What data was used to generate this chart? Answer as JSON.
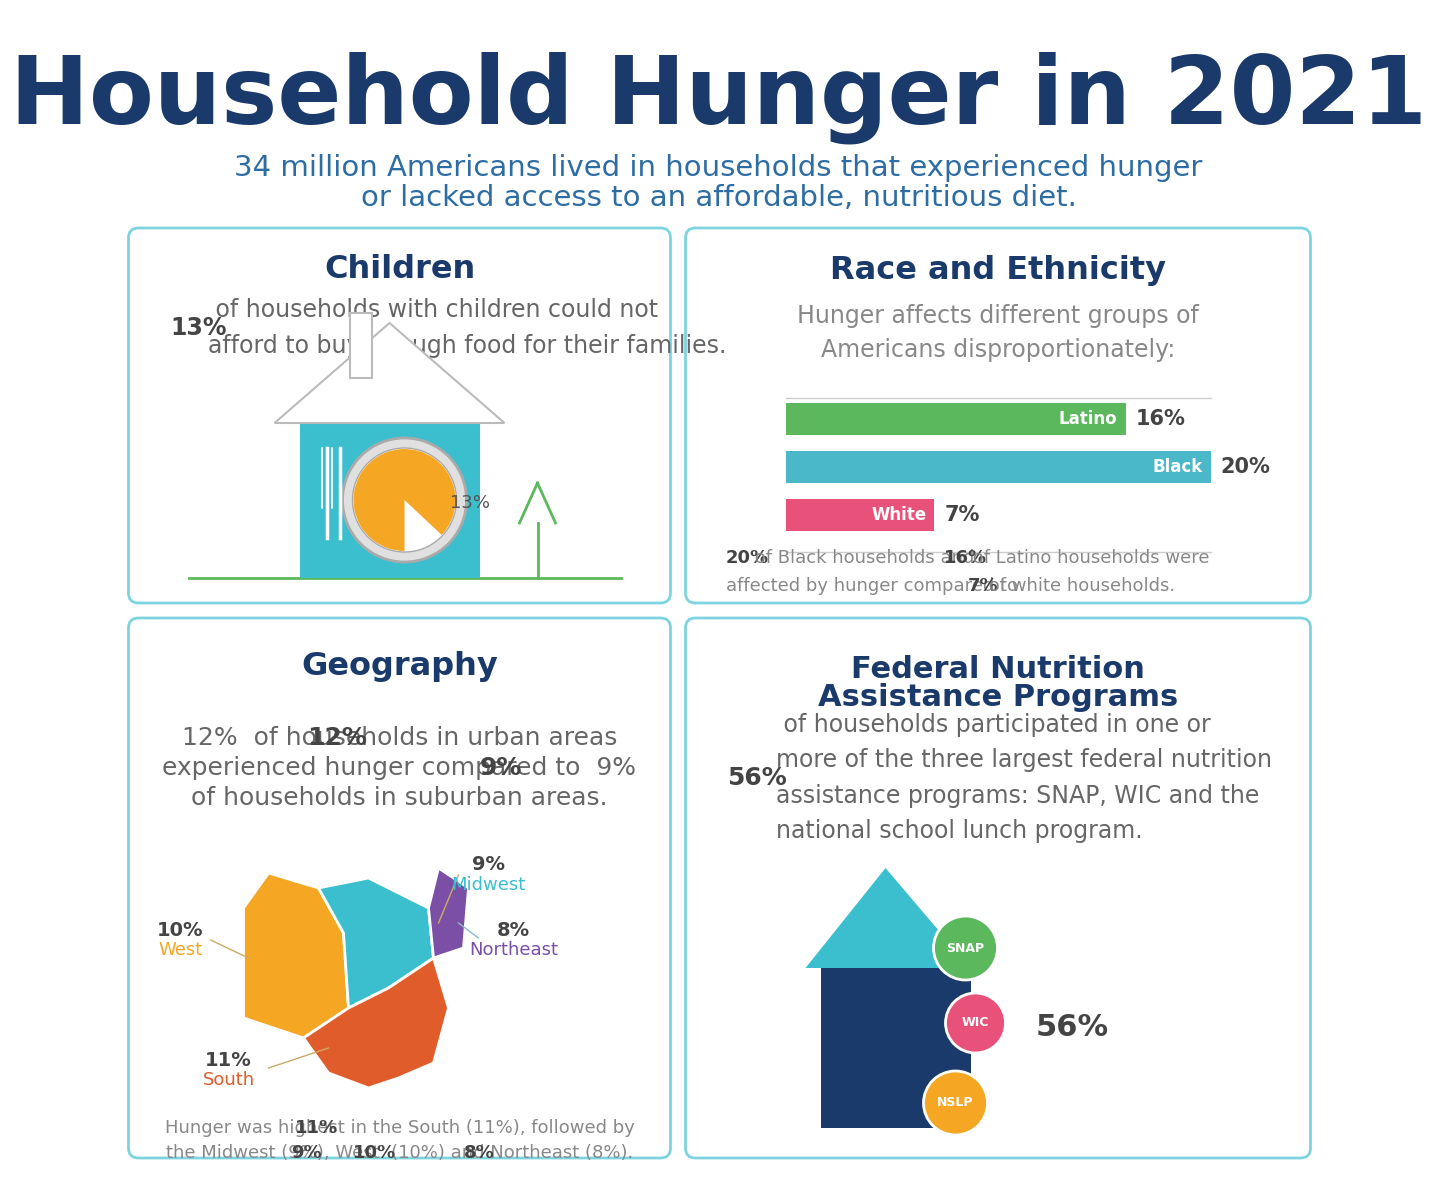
{
  "title": "Household Hunger in 2021",
  "subtitle_line1": "34 million Americans lived in households that experienced hunger",
  "subtitle_line2": "or lacked access to an affordable, nutritious diet.",
  "title_color": "#1a3a6b",
  "subtitle_color": "#2e6da4",
  "bg_color": "#ffffff",
  "box_border_color": "#7dd4e0",
  "children": {
    "section_title": "Children",
    "section_color": "#1a3a6b",
    "bold_pct": "13%",
    "rest_text": " of households with children could not\nafford to buy enough food for their families.",
    "pie_pct": 13,
    "pie_color": "#f5a623",
    "house_color": "#3bbfcf",
    "plate_color": "#e0e0e0",
    "plate_ring": "#aaaaaa"
  },
  "race": {
    "section_title": "Race and Ethnicity",
    "section_color": "#1a3a6b",
    "subtitle": "Hunger affects different groups of\nAmericans disproportionately:",
    "bars": [
      {
        "label": "Latino",
        "value": 16,
        "color": "#5cb85c"
      },
      {
        "label": "Black",
        "value": 20,
        "color": "#4ab8c8"
      },
      {
        "label": "White",
        "value": 7,
        "color": "#e8527a"
      }
    ],
    "max_val": 20,
    "footer_line1_normal1": " of Black households and ",
    "footer_line1_bold1": "20%",
    "footer_line1_bold2": "16%",
    "footer_line1_normal2": " of Latino households were",
    "footer_line2_normal1": "affected by hunger compared to ",
    "footer_line2_bold1": "7%",
    "footer_line2_normal2": " of white households."
  },
  "geography": {
    "section_title": "Geography",
    "section_color": "#1a3a6b",
    "bold1": "12%",
    "normal1": " of households in urban areas\nexperienced hunger compared to ",
    "bold2": "9%",
    "normal2": "\nof households in suburban areas.",
    "west_color": "#f5a623",
    "midwest_color": "#3bbfcf",
    "south_color": "#e05c2a",
    "northeast_color": "#7b4fa6",
    "footer_line1": "Hunger was highest in the South (",
    "footer_b1": "11%",
    "footer_m1": "), followed by",
    "footer_line2a": "the Midwest (",
    "footer_b2": "9%",
    "footer_m2": "), West  (",
    "footer_b3": "10%",
    "footer_m3": ") and Northeast (",
    "footer_b4": "8%",
    "footer_end": ")."
  },
  "federal": {
    "section_title_line1": "Federal Nutrition",
    "section_title_line2": "Assistance Programs",
    "section_color": "#1a3a6b",
    "bold_pct": "56%",
    "rest_text": " of households participated in one or\nmore of the three largest federal nutrition\nassistance programs: SNAP, WIC and the\nnational school lunch program.",
    "snap_color": "#5cb85c",
    "wic_color": "#e8527a",
    "nslp_color": "#f5a623",
    "house_body_color": "#1a3a6b",
    "house_roof_color": "#3bbfcf"
  }
}
